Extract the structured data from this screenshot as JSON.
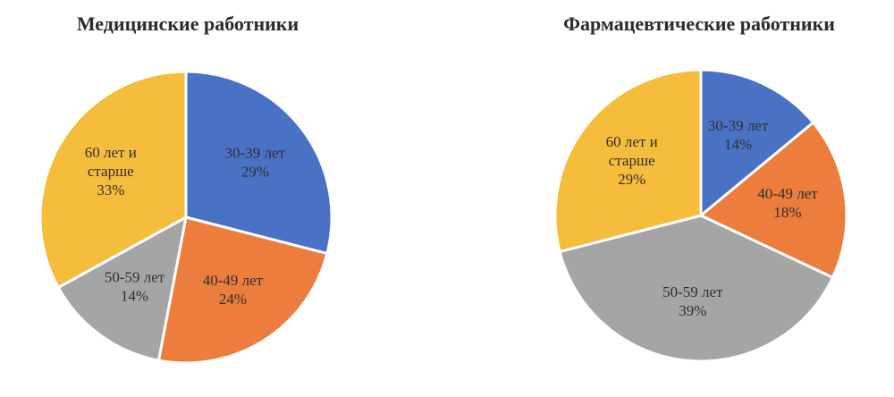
{
  "chart_data": [
    {
      "type": "pie",
      "title": "Медицинские работники",
      "categories": [
        "30-39 лет",
        "40-49 лет",
        "50-59 лет",
        "60 лет и старше"
      ],
      "values": [
        29,
        24,
        14,
        33
      ],
      "value_labels": [
        "29%",
        "24%",
        "14%",
        "33%"
      ],
      "label_lines": [
        [
          "30-39 лет"
        ],
        [
          "40-49 лет"
        ],
        [
          "50-59 лет"
        ],
        [
          "60 лет и",
          "старше"
        ]
      ],
      "colors": [
        "#4a72c4",
        "#ec7d3d",
        "#a5a5a5",
        "#f6bd3c"
      ],
      "start": "12 o'clock",
      "direction": "clockwise"
    },
    {
      "type": "pie",
      "title": "Фармацевтические работники",
      "categories": [
        "30-39 лет",
        "40-49 лет",
        "50-59 лет",
        "60 лет и старше"
      ],
      "values": [
        14,
        18,
        39,
        29
      ],
      "value_labels": [
        "14%",
        "18%",
        "39%",
        "29%"
      ],
      "label_lines": [
        [
          "30-39 лет"
        ],
        [
          "40-49 лет"
        ],
        [
          "50-59 лет"
        ],
        [
          "60 лет и",
          "старше"
        ]
      ],
      "colors": [
        "#4a72c4",
        "#ec7d3d",
        "#a5a5a5",
        "#f6bd3c"
      ],
      "start": "12 o'clock",
      "direction": "clockwise"
    }
  ]
}
